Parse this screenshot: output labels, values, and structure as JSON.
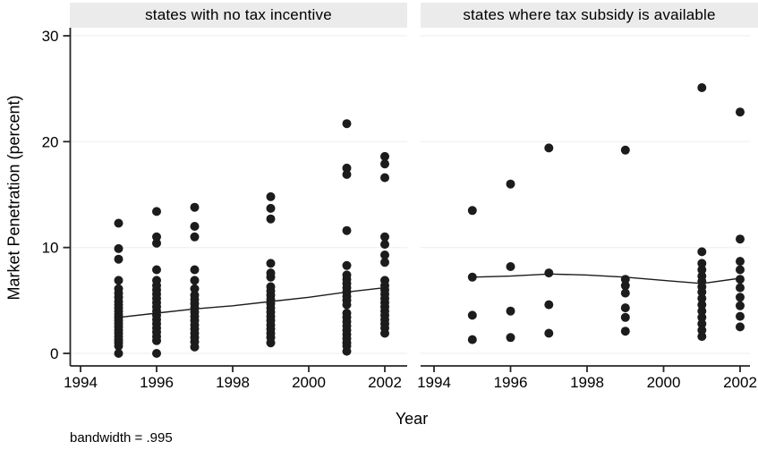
{
  "chart_data": {
    "type": "scatter",
    "xlabel": "Year",
    "ylabel": "Market Penetration (percent)",
    "note": "bandwidth = .995",
    "xlim": [
      1993.7,
      2002.6
    ],
    "ylim": [
      0,
      30
    ],
    "xticks": [
      1994,
      1996,
      1998,
      2000,
      2002
    ],
    "yticks": [
      0,
      10,
      20,
      30
    ],
    "grid": "faint horizontal lines at yticks",
    "legend": "none",
    "panels": [
      {
        "title": "states with no tax incentive",
        "points_by_year": [
          {
            "year": 1995,
            "values": [
              12.3,
              9.9,
              8.9,
              6.9,
              6.1,
              5.7,
              5.3,
              4.9,
              4.6,
              4.3,
              4.0,
              3.7,
              3.4,
              3.1,
              2.8,
              2.5,
              2.2,
              1.9,
              1.6,
              1.3,
              1.0,
              0.7,
              0
            ]
          },
          {
            "year": 1996,
            "values": [
              13.4,
              11.0,
              10.4,
              7.9,
              6.9,
              6.4,
              6.0,
              5.6,
              5.2,
              4.8,
              4.4,
              4.0,
              3.6,
              3.2,
              2.8,
              2.4,
              2.0,
              1.6,
              1.2,
              0
            ]
          },
          {
            "year": 1997,
            "values": [
              13.8,
              12.0,
              11.0,
              7.9,
              6.9,
              6.1,
              5.5,
              5.1,
              4.7,
              4.3,
              3.9,
              3.5,
              3.1,
              2.7,
              2.3,
              1.9,
              1.5,
              1.1,
              0.6
            ]
          },
          {
            "year": 1999,
            "values": [
              14.8,
              13.7,
              12.7,
              8.5,
              7.6,
              7.2,
              6.3,
              5.9,
              5.5,
              5.1,
              4.7,
              4.3,
              3.9,
              3.5,
              3.1,
              2.7,
              2.3,
              1.9,
              1.5,
              1.0
            ]
          },
          {
            "year": 2001,
            "values": [
              21.7,
              17.5,
              16.9,
              11.6,
              8.3,
              7.4,
              7.0,
              6.6,
              6.2,
              5.8,
              5.4,
              5.0,
              4.6,
              3.8,
              3.4,
              3.0,
              2.6,
              2.2,
              1.8,
              1.4,
              1.0,
              0.7,
              0.2
            ]
          },
          {
            "year": 2002,
            "values": [
              18.6,
              17.9,
              16.6,
              11.0,
              10.3,
              9.3,
              8.6,
              6.9,
              6.4,
              6.0,
              5.6,
              5.2,
              4.8,
              4.4,
              4.0,
              3.6,
              3.2,
              2.8,
              2.4,
              1.9
            ]
          }
        ],
        "lowess_line": {
          "x": [
            1995,
            1996,
            1997,
            1998,
            1999,
            2000,
            2001,
            2002
          ],
          "y": [
            3.4,
            3.8,
            4.2,
            4.5,
            4.9,
            5.3,
            5.8,
            6.2
          ]
        }
      },
      {
        "title": "states where tax subsidy is available",
        "points_by_year": [
          {
            "year": 1995,
            "values": [
              13.5,
              7.2,
              3.6,
              1.3
            ]
          },
          {
            "year": 1996,
            "values": [
              16.0,
              8.2,
              4.0,
              1.5
            ]
          },
          {
            "year": 1997,
            "values": [
              19.4,
              7.6,
              4.6,
              1.9
            ]
          },
          {
            "year": 1999,
            "values": [
              19.2,
              7.0,
              6.4,
              5.7,
              4.3,
              3.4,
              2.1
            ]
          },
          {
            "year": 2001,
            "values": [
              25.1,
              9.6,
              8.5,
              7.9,
              7.3,
              6.8,
              6.3,
              5.8,
              5.2,
              4.6,
              4.0,
              3.4,
              2.8,
              2.2,
              1.6
            ]
          },
          {
            "year": 2002,
            "values": [
              22.8,
              10.8,
              8.7,
              7.9,
              7.0,
              6.2,
              5.3,
              4.5,
              3.5,
              2.5
            ]
          }
        ],
        "lowess_line": {
          "x": [
            1995,
            1996,
            1997,
            1998,
            1999,
            2000,
            2001,
            2002
          ],
          "y": [
            7.2,
            7.3,
            7.5,
            7.4,
            7.2,
            6.9,
            6.6,
            7.1
          ]
        }
      }
    ]
  },
  "colors": {
    "dot": "#1c1c1c",
    "line": "#1c1c1c",
    "axis": "#262626",
    "grid": "#f0f0f0",
    "title_band": "#ebebeb",
    "background": "#ffffff"
  }
}
